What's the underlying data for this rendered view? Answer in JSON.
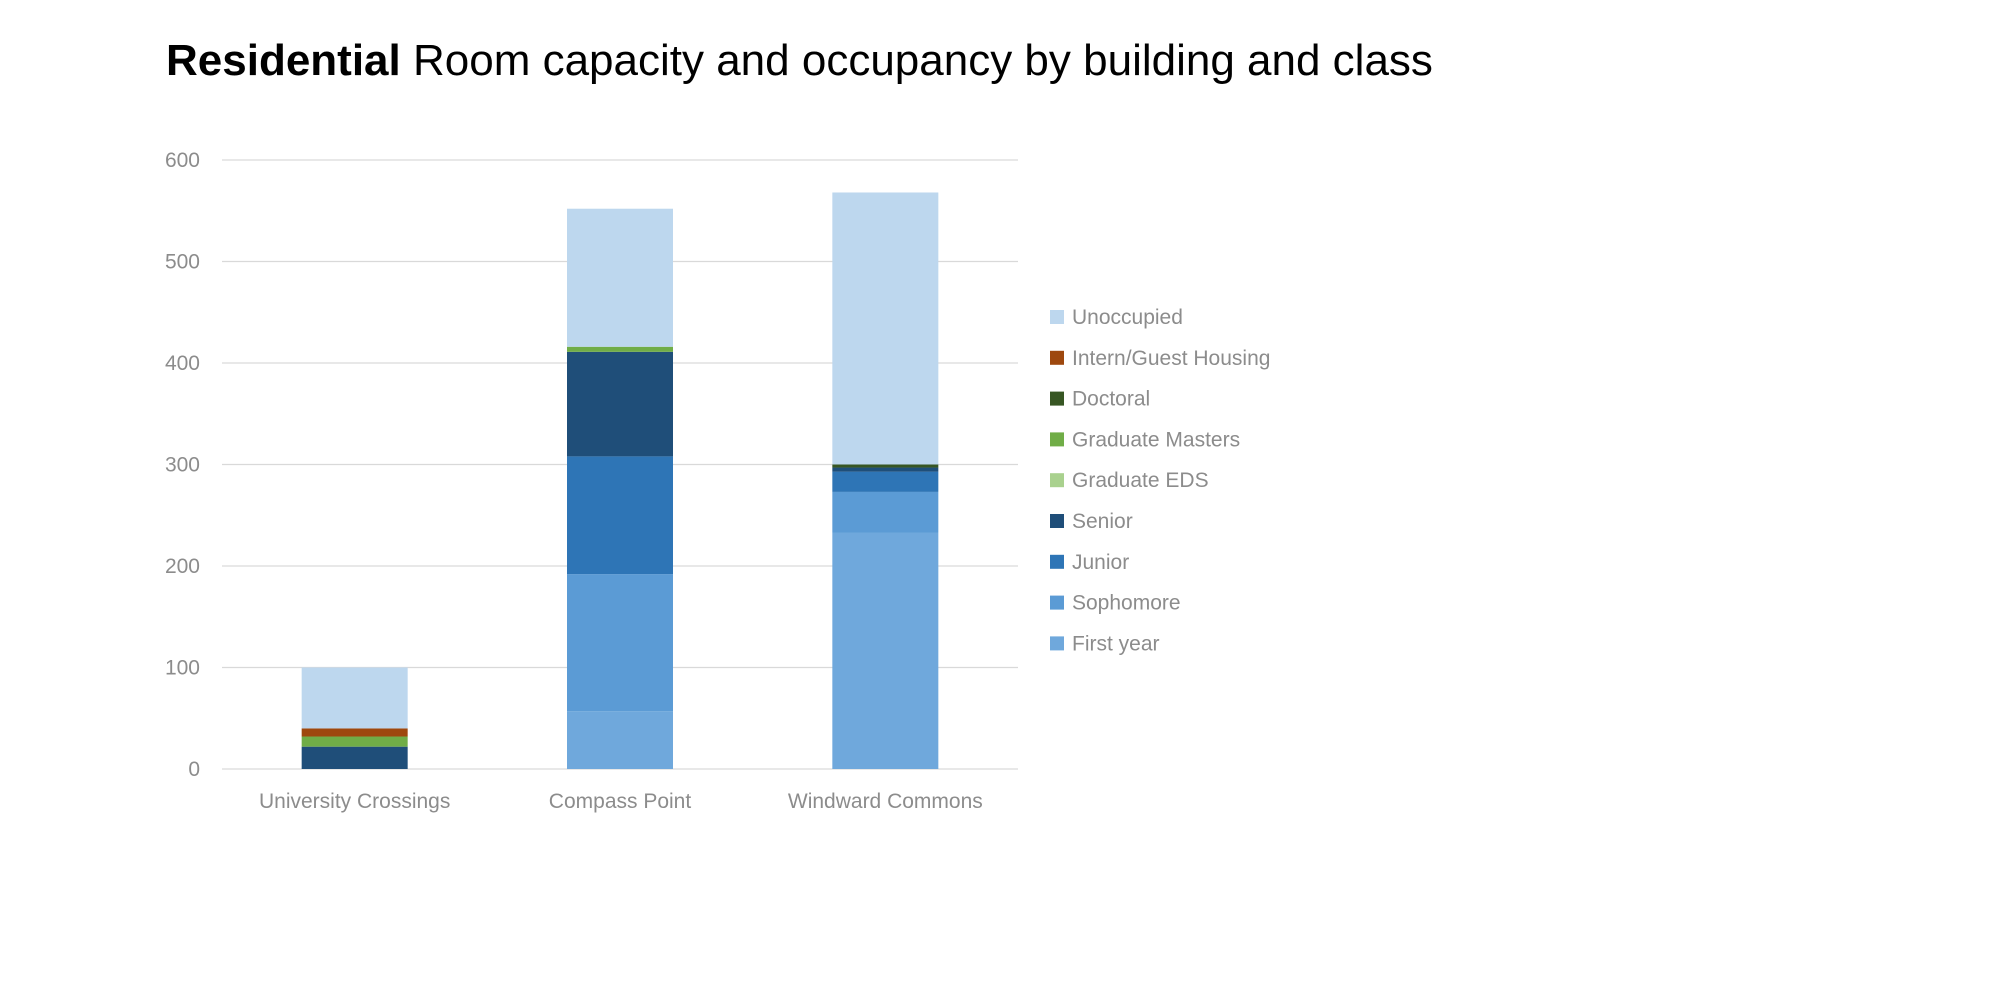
{
  "header": {
    "title_bold": "Residential",
    "title_rest": "Room capacity and occupancy by building and class"
  },
  "chart_data": {
    "type": "bar",
    "stacked": true,
    "categories": [
      "University Crossings",
      "Compass Point",
      "Windward Commons"
    ],
    "ylim": [
      0,
      600
    ],
    "yticks": [
      0,
      100,
      200,
      300,
      400,
      500,
      600
    ],
    "grid": true,
    "legend_position": "right",
    "series": [
      {
        "name": "First year",
        "color": "#6fa8dc",
        "values": [
          0,
          57,
          233
        ]
      },
      {
        "name": "Sophomore",
        "color": "#5b9bd5",
        "values": [
          0,
          135,
          40
        ]
      },
      {
        "name": "Junior",
        "color": "#2e75b6",
        "values": [
          0,
          116,
          20
        ]
      },
      {
        "name": "Senior",
        "color": "#1f4e79",
        "values": [
          22,
          103,
          4
        ]
      },
      {
        "name": "Graduate EDS",
        "color": "#a9d18e",
        "values": [
          0,
          0,
          0
        ]
      },
      {
        "name": "Graduate Masters",
        "color": "#70ad47",
        "values": [
          10,
          5,
          0
        ]
      },
      {
        "name": "Doctoral",
        "color": "#375623",
        "values": [
          0,
          0,
          3
        ]
      },
      {
        "name": "Intern/Guest Housing",
        "color": "#9e480e",
        "values": [
          8,
          0,
          0
        ]
      },
      {
        "name": "Unoccupied",
        "color": "#bdd7ee",
        "values": [
          60,
          136,
          268
        ]
      }
    ],
    "legend_order": [
      "Unoccupied",
      "Intern/Guest Housing",
      "Doctoral",
      "Graduate Masters",
      "Graduate EDS",
      "Senior",
      "Junior",
      "Sophomore",
      "First year"
    ],
    "gridline_color": "#d9d9d9",
    "axis_text_color": "#8c8c8c"
  }
}
